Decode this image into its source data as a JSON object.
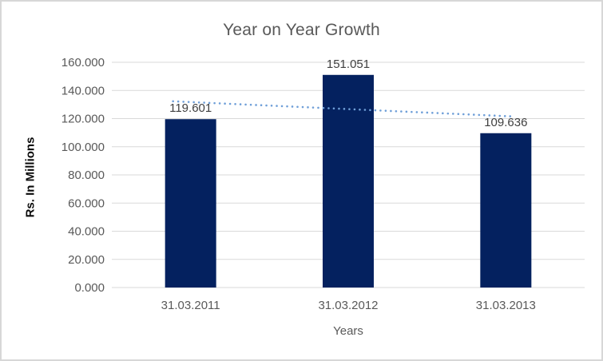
{
  "chart_data": {
    "type": "bar",
    "title": "Year on Year Growth",
    "xlabel": "Years",
    "ylabel": "Rs. In Millions",
    "categories": [
      "31.03.2011",
      "31.03.2012",
      "31.03.2013"
    ],
    "values": [
      119.601,
      151.051,
      109.636
    ],
    "data_labels": [
      "119.601",
      "151.051",
      "109.636"
    ],
    "ylim": [
      0,
      160
    ],
    "yticks": [
      0,
      20,
      40,
      60,
      80,
      100,
      120,
      140,
      160
    ],
    "ytick_labels": [
      "0.000",
      "20.000",
      "40.000",
      "60.000",
      "80.000",
      "100.000",
      "120.000",
      "140.000",
      "160.000"
    ],
    "grid": true,
    "legend": "none",
    "trendline": {
      "type": "linear",
      "style": "dotted"
    },
    "colors": {
      "bar": "#04215f",
      "trendline": "#6f9fd8",
      "gridline": "#d9d9d9",
      "title_text": "#595959",
      "tick_text": "#595959",
      "data_label_text": "#3f3f3f",
      "y_axis_title_text": "#0a0a0a",
      "chart_border": "#d7d7d7",
      "background": "#ffffff"
    }
  }
}
